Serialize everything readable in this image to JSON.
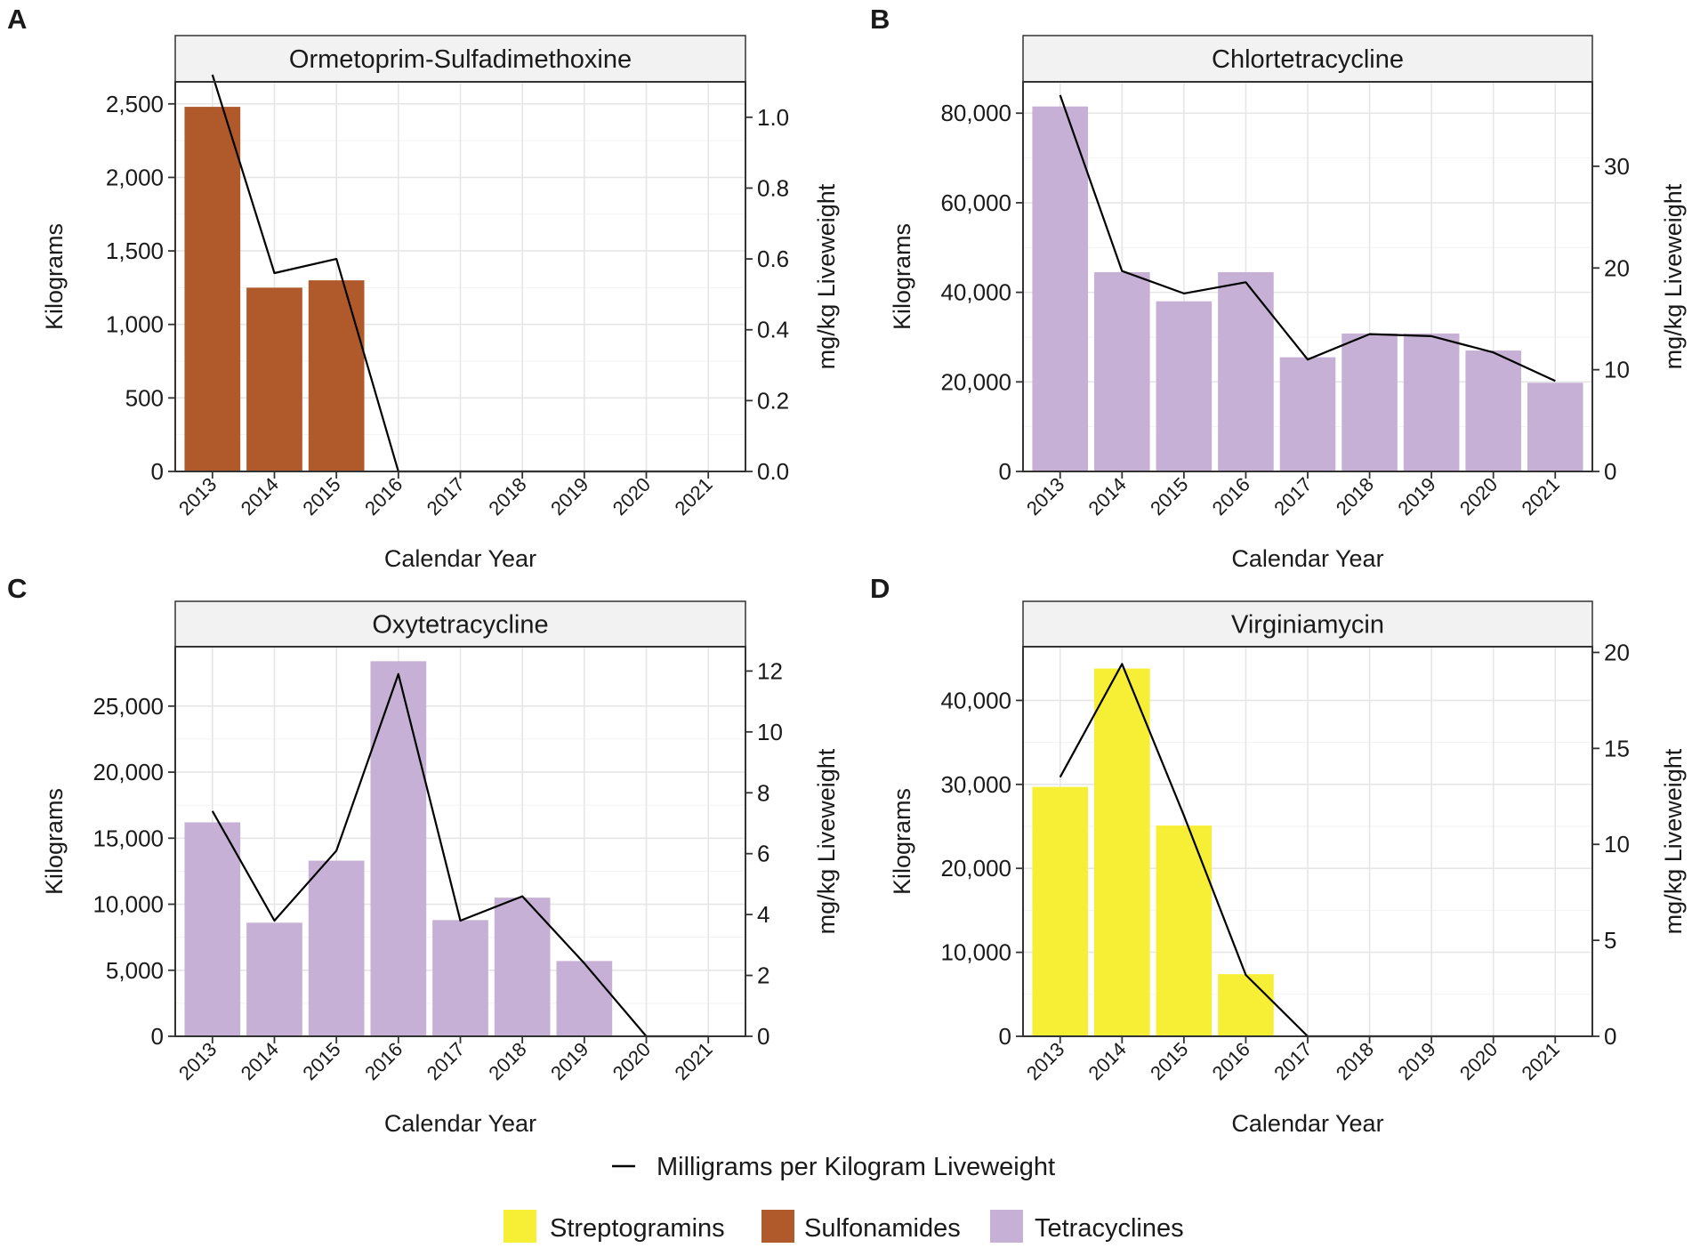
{
  "legend": {
    "line_label": "Milligrams per Kilogram Liveweight",
    "items": [
      {
        "label": "Streptogramins",
        "color": "#f7ef35"
      },
      {
        "label": "Sulfonamides",
        "color": "#b0592a"
      },
      {
        "label": "Tetracyclines",
        "color": "#c7b0d6"
      }
    ]
  },
  "chart_data": [
    {
      "type": "bar",
      "panel": "A",
      "title": "Ormetoprim-Sulfadimethoxine",
      "class": "Sulfonamides",
      "color": "#b0592a",
      "categories": [
        "2013",
        "2014",
        "2015",
        "2016",
        "2017",
        "2018",
        "2019",
        "2020",
        "2021"
      ],
      "xlabel": "Calendar Year",
      "ylabel": "Kilograms",
      "y2label": "mg/kg Liveweight",
      "ylim": [
        0,
        2650
      ],
      "y2lim": [
        0,
        1.1
      ],
      "yticks": [
        0,
        500,
        1000,
        1500,
        2000,
        2500
      ],
      "yticklabels": [
        "0",
        "500",
        "1,000",
        "1,500",
        "2,000",
        "2,500"
      ],
      "y2ticks": [
        0,
        0.2,
        0.4,
        0.6,
        0.8,
        1.0
      ],
      "y2ticklabels": [
        "0.0",
        "0.2",
        "0.4",
        "0.6",
        "0.8",
        "1.0"
      ],
      "bars": [
        2480,
        1250,
        1300,
        0,
        0,
        0,
        0,
        0,
        0
      ],
      "line": [
        1.12,
        0.56,
        0.6,
        0,
        0,
        0,
        0,
        0,
        0
      ]
    },
    {
      "type": "bar",
      "panel": "B",
      "title": "Chlortetracycline",
      "class": "Tetracyclines",
      "color": "#c7b0d6",
      "categories": [
        "2013",
        "2014",
        "2015",
        "2016",
        "2017",
        "2018",
        "2019",
        "2020",
        "2021"
      ],
      "xlabel": "Calendar Year",
      "ylabel": "Kilograms",
      "y2label": "mg/kg Liveweight",
      "ylim": [
        0,
        87000
      ],
      "y2lim": [
        0,
        38.3
      ],
      "yticks": [
        0,
        20000,
        40000,
        60000,
        80000
      ],
      "yticklabels": [
        "0",
        "20,000",
        "40,000",
        "60,000",
        "80,000"
      ],
      "y2ticks": [
        0,
        10,
        20,
        30
      ],
      "y2ticklabels": [
        "0",
        "10",
        "20",
        "30"
      ],
      "bars": [
        81500,
        44500,
        38000,
        44500,
        25500,
        30800,
        30800,
        27000,
        19800
      ],
      "line": [
        37,
        19.7,
        17.5,
        18.6,
        11,
        13.5,
        13.3,
        11.7,
        8.9
      ]
    },
    {
      "type": "bar",
      "panel": "C",
      "title": "Oxytetracycline",
      "class": "Tetracyclines",
      "color": "#c7b0d6",
      "categories": [
        "2013",
        "2014",
        "2015",
        "2016",
        "2017",
        "2018",
        "2019",
        "2020",
        "2021"
      ],
      "xlabel": "Calendar Year",
      "ylabel": "Kilograms",
      "y2label": "mg/kg Liveweight",
      "ylim": [
        0,
        29500
      ],
      "y2lim": [
        0,
        12.8
      ],
      "yticks": [
        0,
        5000,
        10000,
        15000,
        20000,
        25000
      ],
      "yticklabels": [
        "0",
        "5,000",
        "10,000",
        "15,000",
        "20,000",
        "25,000"
      ],
      "y2ticks": [
        0,
        2,
        4,
        6,
        8,
        10,
        12
      ],
      "y2ticklabels": [
        "0",
        "2",
        "4",
        "6",
        "8",
        "10",
        "12"
      ],
      "bars": [
        16200,
        8600,
        13300,
        28400,
        8800,
        10500,
        5700,
        0,
        0
      ],
      "line": [
        7.4,
        3.8,
        6.1,
        11.9,
        3.8,
        4.6,
        2.4,
        0,
        0
      ]
    },
    {
      "type": "bar",
      "panel": "D",
      "title": "Virginiamycin",
      "class": "Streptogramins",
      "color": "#f7ef35",
      "categories": [
        "2013",
        "2014",
        "2015",
        "2016",
        "2017",
        "2018",
        "2019",
        "2020",
        "2021"
      ],
      "xlabel": "Calendar Year",
      "ylabel": "Kilograms",
      "y2label": "mg/kg Liveweight",
      "ylim": [
        0,
        46400
      ],
      "y2lim": [
        0,
        20.3
      ],
      "yticks": [
        0,
        10000,
        20000,
        30000,
        40000
      ],
      "yticklabels": [
        "0",
        "10,000",
        "20,000",
        "30,000",
        "40,000"
      ],
      "y2ticks": [
        0,
        5,
        10,
        15,
        20
      ],
      "y2ticklabels": [
        "0",
        "5",
        "10",
        "15",
        "20"
      ],
      "bars": [
        29700,
        43800,
        25100,
        7400,
        0,
        0,
        0,
        0,
        0
      ],
      "line": [
        13.5,
        19.4,
        11.5,
        3.2,
        0,
        0,
        0,
        0,
        0
      ]
    }
  ]
}
